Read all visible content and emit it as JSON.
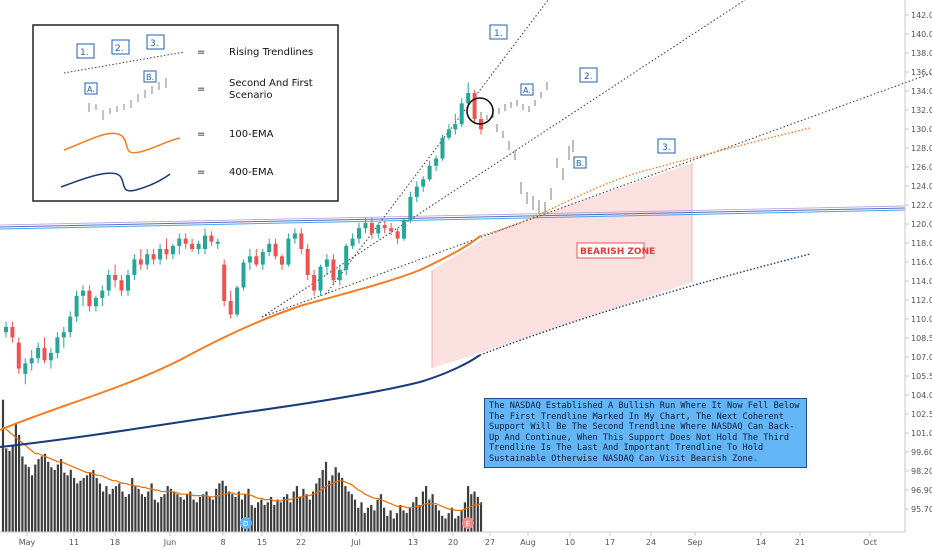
{
  "chart_data": {
    "type": "candlestick",
    "y_axis": {
      "ticks": [
        "142.00",
        "140.00",
        "138.00",
        "136.00",
        "134.00",
        "132.00",
        "130.00",
        "128.00",
        "126.00",
        "124.00",
        "122.00",
        "120.00",
        "118.00",
        "116.00",
        "114.00",
        "112.00",
        "110.00",
        "108.50",
        "107.00",
        "105.50",
        "104.00",
        "102.50",
        "101.00",
        "99.60",
        "98.20",
        "96.90",
        "95.70"
      ],
      "price_range": [
        109,
        143
      ]
    },
    "x_axis": {
      "ticks": [
        "May",
        "11",
        "18",
        "Jun",
        "8",
        "15",
        "22",
        "Jul",
        "13",
        "20",
        "27",
        "Aug",
        "10",
        "17",
        "24",
        "Sep",
        "14",
        "21",
        "Oct"
      ]
    },
    "candles": [
      [
        111.5,
        112.5,
        111,
        112
      ],
      [
        112,
        112.5,
        110.5,
        111
      ],
      [
        110.5,
        111,
        107.5,
        108
      ],
      [
        107.5,
        109,
        106.5,
        108.5
      ],
      [
        108.5,
        109.8,
        107.8,
        109
      ],
      [
        109,
        110.5,
        108.5,
        110
      ],
      [
        110,
        111,
        108.5,
        108.8
      ],
      [
        108.8,
        110,
        108,
        109.5
      ],
      [
        109.5,
        111.5,
        109,
        111
      ],
      [
        111,
        112,
        110,
        111.5
      ],
      [
        111.5,
        113.5,
        111,
        113
      ],
      [
        113,
        115.5,
        112.5,
        115
      ],
      [
        115,
        116,
        114,
        115.5
      ],
      [
        115.5,
        116,
        113.5,
        114
      ],
      [
        114,
        115,
        113.5,
        114.8
      ],
      [
        114.8,
        116,
        114,
        115.5
      ],
      [
        115.5,
        117.5,
        115,
        117
      ],
      [
        117,
        118,
        115.8,
        116.5
      ],
      [
        116.5,
        117,
        115,
        115.5
      ],
      [
        115.5,
        117.5,
        115,
        117
      ],
      [
        117,
        119,
        116.5,
        118.5
      ],
      [
        118.5,
        119.5,
        117.5,
        118
      ],
      [
        118,
        119.5,
        117.5,
        119
      ],
      [
        119,
        119.5,
        118,
        118.5
      ],
      [
        118.5,
        120,
        118,
        119.5
      ],
      [
        119.5,
        120.5,
        118.5,
        119
      ],
      [
        119,
        120,
        118.5,
        119.8
      ],
      [
        119.8,
        121,
        119,
        120.5
      ],
      [
        120.5,
        121,
        119.5,
        120
      ],
      [
        120,
        120.5,
        119.2,
        119.5
      ],
      [
        119.5,
        120.3,
        119,
        120
      ],
      [
        119.5,
        121.5,
        119,
        120.8
      ],
      [
        120.8,
        121.2,
        119.8,
        120.2
      ],
      [
        120,
        120.5,
        119.5,
        120.2
      ],
      [
        118,
        118.5,
        114,
        114.5
      ],
      [
        114.5,
        115.5,
        112.8,
        113.2
      ],
      [
        113.2,
        116,
        113,
        115.8
      ],
      [
        115.8,
        118.5,
        115.5,
        118.2
      ],
      [
        118.2,
        119.5,
        117.5,
        118.8
      ],
      [
        118.8,
        119.5,
        117.8,
        118
      ],
      [
        118,
        119.5,
        117.5,
        119.2
      ],
      [
        119.2,
        120.5,
        118.8,
        120
      ],
      [
        120,
        120.5,
        118.5,
        118.8
      ],
      [
        118.8,
        119,
        117.5,
        118
      ],
      [
        118,
        121,
        117.8,
        120.5
      ],
      [
        120.5,
        121.5,
        120,
        121
      ],
      [
        121,
        121.5,
        119,
        119.5
      ],
      [
        119.5,
        120,
        116.5,
        117
      ],
      [
        117,
        117.5,
        115,
        115.5
      ],
      [
        115.5,
        118,
        115,
        117.8
      ],
      [
        117.8,
        119,
        117,
        118.5
      ],
      [
        118.5,
        119,
        116,
        116.5
      ],
      [
        116.5,
        118,
        116,
        117.5
      ],
      [
        117.5,
        120,
        117,
        119.8
      ],
      [
        119.8,
        121,
        119.5,
        120.5
      ],
      [
        120.5,
        122,
        120,
        121.5
      ],
      [
        121.5,
        122.5,
        121,
        122
      ],
      [
        122,
        122.5,
        120.5,
        121
      ],
      [
        121,
        122,
        120.5,
        121.8
      ],
      [
        121.8,
        122.2,
        121,
        121.5
      ],
      [
        121.5,
        122,
        120.8,
        121.2
      ],
      [
        121.2,
        121.5,
        120,
        120.5
      ],
      [
        120.5,
        122.5,
        120.3,
        122.3
      ],
      [
        122.3,
        125,
        122,
        124.5
      ],
      [
        124.5,
        126,
        124,
        125.5
      ],
      [
        125.5,
        126.5,
        125,
        126.2
      ],
      [
        126.2,
        128,
        126,
        127.5
      ],
      [
        127.5,
        128.5,
        127,
        128.2
      ],
      [
        128.2,
        130.5,
        128,
        130.2
      ],
      [
        130.2,
        131.5,
        130,
        131
      ],
      [
        131,
        132.5,
        130.5,
        131.5
      ],
      [
        131.5,
        134,
        131.2,
        133.5
      ],
      [
        133.5,
        135.5,
        133,
        134.5
      ],
      [
        134.5,
        134.8,
        131.5,
        132
      ],
      [
        132,
        132.3,
        130.5,
        131
      ]
    ],
    "candle_dates_visible": "May - Jul 24",
    "volume": {
      "values": [
        98,
        62,
        60,
        64,
        80,
        72,
        56,
        50,
        48,
        42,
        50,
        54,
        56,
        58,
        52,
        48,
        46,
        50,
        54,
        44,
        42,
        46,
        40,
        36,
        38,
        40,
        42,
        44,
        46,
        40,
        36,
        30,
        34,
        28,
        32,
        34,
        36,
        30,
        26,
        28,
        40,
        34,
        32,
        28,
        26,
        30,
        36,
        24,
        22,
        26,
        28,
        34,
        32,
        30,
        28,
        26,
        24,
        28,
        30,
        24,
        22,
        26,
        28,
        30,
        26,
        24,
        32,
        36,
        38,
        34,
        30,
        28,
        26,
        30,
        24,
        28,
        32,
        20,
        18,
        22,
        24,
        20,
        22,
        26,
        20,
        24,
        22,
        26,
        28,
        22,
        30,
        34,
        26,
        32,
        28,
        24,
        30,
        36,
        40,
        46,
        52,
        38,
        42,
        48,
        44,
        40,
        34,
        30,
        28,
        24,
        18,
        22,
        14,
        18,
        20,
        16,
        24,
        28,
        18,
        12,
        16,
        10,
        14,
        20,
        16,
        14,
        18,
        22,
        26,
        20,
        30,
        34,
        24,
        28,
        20,
        16,
        12,
        10,
        14,
        18,
        10,
        12,
        16,
        22,
        34,
        28,
        30,
        26,
        22
      ],
      "ma": [
        78,
        76,
        74,
        72,
        70,
        68,
        66,
        64,
        62,
        60,
        58,
        58,
        57,
        56,
        55,
        54,
        53,
        52,
        52,
        51,
        50,
        49,
        48,
        47,
        46,
        45,
        44,
        44,
        43,
        42,
        42,
        41,
        40,
        39,
        38,
        38,
        37,
        36,
        36,
        35,
        35,
        34,
        34,
        33,
        33,
        32,
        32,
        31,
        31,
        30,
        30,
        30,
        30,
        29,
        29,
        28,
        28,
        28,
        28,
        27,
        27,
        27,
        27,
        27,
        26,
        26,
        27,
        27,
        28,
        28,
        29,
        29,
        28,
        28,
        28,
        28,
        28,
        27,
        26,
        25,
        25,
        24,
        24,
        24,
        23,
        23,
        23,
        24,
        24,
        24,
        25,
        25,
        26,
        26,
        27,
        27,
        28,
        29,
        30,
        32,
        34,
        35,
        36,
        37,
        38,
        38,
        37,
        36,
        35,
        33,
        31,
        30,
        28,
        27,
        26,
        25,
        25,
        24,
        23,
        22,
        21,
        20,
        19,
        19,
        19,
        18,
        18,
        18,
        19,
        19,
        20,
        21,
        21,
        21,
        21,
        20,
        19,
        18,
        17,
        17,
        16,
        16,
        16,
        17,
        18,
        19,
        20,
        20,
        21
      ]
    },
    "ema100_projection_label": "100-EMA",
    "ema400_projection_label": "400-EMA",
    "trendline_labels": [
      "1.",
      "2.",
      "3."
    ],
    "scenario_labels": [
      "A.",
      "B."
    ],
    "bearish_zone_label": "BEARISH ZONE",
    "event_markers": [
      "D",
      "E"
    ]
  },
  "legend": {
    "items": [
      {
        "symbol": "=",
        "label": "Rising Trendlines"
      },
      {
        "symbol": "=",
        "label": "Second And First Scenario"
      },
      {
        "symbol": "=",
        "label": "100-EMA"
      },
      {
        "symbol": "=",
        "label": "400-EMA"
      }
    ],
    "trend_marks": [
      "1.",
      "2.",
      "3."
    ],
    "scenario_marks": [
      "A.",
      "B."
    ]
  },
  "annotation": {
    "text": "The NASDAQ Established A Bullish Run Where It Now Fell Below The First Trendline Marked In My Chart, The Next Coherent Support Will Be The Second Trendline Where NASDAQ Can Back-Up And Continue, When This Support Does Not Hold The Third Trendline Is The Last And Important Trendline To Hold Sustainable Otherwise NASDAQ Can Visit Bearish Zone."
  },
  "colors": {
    "up": "#26a69a",
    "down": "#ef5350",
    "ema100": "#f57c20",
    "ema400": "#1a3a7a",
    "trend": "#444444",
    "volume": "#3d3d3d",
    "volume_ma": "#ef6c00",
    "zone": "#f9d6d6",
    "label_box": "#1f5fae"
  }
}
